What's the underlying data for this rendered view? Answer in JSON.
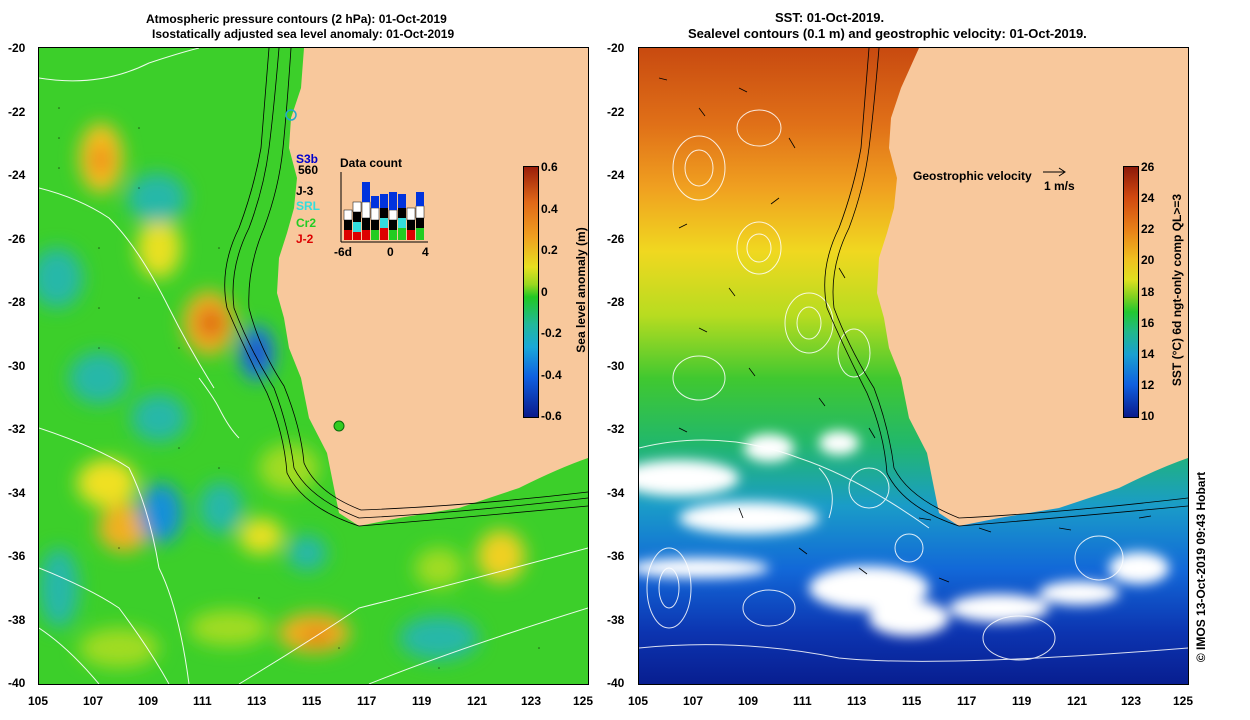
{
  "left_panel": {
    "title_line1": "Atmospheric pressure contours (2 hPa): 01-Oct-2019",
    "title_line2": "Isostatically adjusted sea level anomaly: 01-Oct-2019",
    "colorbar_label": "Sea level anomaly (m)",
    "colorbar_ticks": [
      "0.6",
      "0.4",
      "0.2",
      "0",
      "-0.2",
      "-0.4",
      "-0.6"
    ],
    "legend_title": "Data count",
    "satellites": [
      {
        "name": "S3b",
        "color": "#0000cc"
      },
      {
        "name": "560",
        "color": "#000000"
      },
      {
        "name": "J-3",
        "color": "#000000"
      },
      {
        "name": "SRL",
        "color": "#33dddd"
      },
      {
        "name": "Cr2",
        "color": "#22cc22"
      },
      {
        "name": "J-2",
        "color": "#dd0000"
      }
    ],
    "data_count_axis": [
      "-6d",
      "0",
      "4"
    ]
  },
  "right_panel": {
    "title_line1": "SST: 01-Oct-2019.",
    "title_line2": "Sealevel contours (0.1 m) and geostrophic velocity: 01-Oct-2019.",
    "velocity_legend": "Geostrophic velocity",
    "velocity_scale": "1 m/s",
    "colorbar_label": "SST (°C) 6d ngt-only comp QL>=3",
    "colorbar_ticks": [
      "26",
      "24",
      "22",
      "20",
      "18",
      "16",
      "14",
      "12",
      "10"
    ],
    "credit": "© IMOS 13-Oct-2019 09:43 Hobart"
  },
  "axes": {
    "lat_labels": [
      "-20",
      "-22",
      "-24",
      "-26",
      "-28",
      "-30",
      "-32",
      "-34",
      "-36",
      "-38",
      "-40"
    ],
    "lon_labels": [
      "105",
      "107",
      "109",
      "111",
      "113",
      "115",
      "117",
      "119",
      "121",
      "123",
      "125"
    ]
  },
  "colors": {
    "land": "#f8c89c",
    "sla_background": "#33cc22",
    "sst_warm": "#d05010",
    "sst_cold": "#0a2ea8"
  }
}
